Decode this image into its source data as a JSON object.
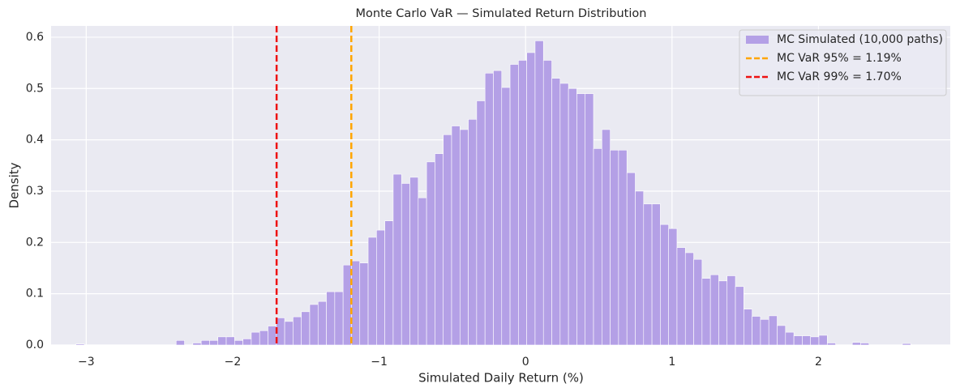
{
  "chart_data": {
    "type": "histogram",
    "title": "Monte Carlo VaR — Simulated Return Distribution",
    "xlabel": "Simulated Daily Return (%)",
    "ylabel": "Density",
    "xlim": [
      -3.24,
      2.9
    ],
    "ylim": [
      0,
      0.622
    ],
    "xticks": [
      {
        "value": -3,
        "label": "−3"
      },
      {
        "value": -2,
        "label": "−2"
      },
      {
        "value": -1,
        "label": "−1"
      },
      0,
      1,
      2
    ],
    "yticks": [
      {
        "value": 0,
        "label": "0.0"
      },
      0.1,
      0.2,
      0.3,
      0.4,
      0.5,
      0.6
    ],
    "grid": true,
    "legend": "upper right",
    "series": [
      {
        "name": "MC Simulated (10,000 paths)",
        "color": "#b4a0e6",
        "bins": [
          -3.07,
          -3.013,
          -2.956,
          -2.899,
          -2.842,
          -2.785,
          -2.728,
          -2.671,
          -2.614,
          -2.557,
          -2.5,
          -2.443,
          -2.386,
          -2.329,
          -2.272,
          -2.215,
          -2.158,
          -2.101,
          -2.044,
          -1.987,
          -1.93,
          -1.873,
          -1.816,
          -1.759,
          -1.702,
          -1.645,
          -1.588,
          -1.531,
          -1.474,
          -1.417,
          -1.36,
          -1.303,
          -1.246,
          -1.189,
          -1.132,
          -1.075,
          -1.018,
          -0.961,
          -0.904,
          -0.847,
          -0.79,
          -0.733,
          -0.676,
          -0.619,
          -0.562,
          -0.505,
          -0.448,
          -0.391,
          -0.334,
          -0.277,
          -0.22,
          -0.163,
          -0.106,
          -0.049,
          0.008,
          0.065,
          0.122,
          0.179,
          0.236,
          0.293,
          0.35,
          0.407,
          0.464,
          0.521,
          0.578,
          0.635,
          0.692,
          0.749,
          0.806,
          0.863,
          0.92,
          0.977,
          1.034,
          1.091,
          1.148,
          1.205,
          1.262,
          1.319,
          1.376,
          1.433,
          1.49,
          1.547,
          1.604,
          1.661,
          1.718,
          1.775,
          1.832,
          1.889,
          1.946,
          2.003,
          2.06,
          2.117,
          2.174,
          2.231,
          2.288,
          2.345,
          2.402,
          2.459,
          2.516,
          2.573,
          2.63
        ],
        "values": [
          0.002,
          0,
          0,
          0,
          0,
          0,
          0,
          0,
          0,
          0,
          0,
          0,
          0.009,
          0,
          0.004,
          0.009,
          0.009,
          0.016,
          0.016,
          0.009,
          0.012,
          0.025,
          0.028,
          0.037,
          0.053,
          0.046,
          0.055,
          0.065,
          0.079,
          0.085,
          0.104,
          0.104,
          0.156,
          0.164,
          0.16,
          0.21,
          0.224,
          0.242,
          0.333,
          0.315,
          0.327,
          0.287,
          0.357,
          0.373,
          0.41,
          0.427,
          0.42,
          0.44,
          0.476,
          0.53,
          0.535,
          0.502,
          0.547,
          0.555,
          0.57,
          0.593,
          0.555,
          0.52,
          0.51,
          0.5,
          0.49,
          0.49,
          0.383,
          0.42,
          0.38,
          0.38,
          0.336,
          0.3,
          0.275,
          0.275,
          0.235,
          0.227,
          0.19,
          0.18,
          0.167,
          0.13,
          0.137,
          0.125,
          0.135,
          0.114,
          0.07,
          0.056,
          0.05,
          0.057,
          0.038,
          0.025,
          0.018,
          0.018,
          0.016,
          0.019,
          0.004,
          0,
          0,
          0.005,
          0.004,
          0,
          0,
          0,
          0,
          0.003
        ]
      }
    ],
    "vlines": [
      {
        "name": "MC VaR 95% = 1.19%",
        "x": -1.19,
        "color": "#ffa500"
      },
      {
        "name": "MC VaR 99% = 1.70%",
        "x": -1.7,
        "color": "#ee1111"
      }
    ]
  }
}
